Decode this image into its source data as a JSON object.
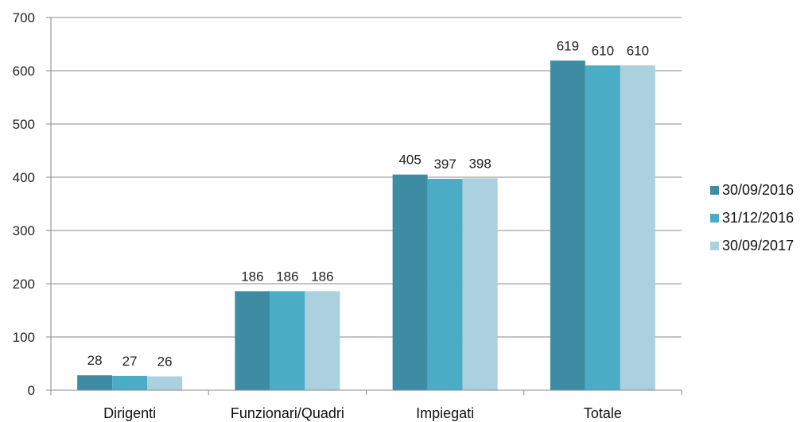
{
  "chart_data": {
    "type": "bar",
    "categories": [
      "Dirigenti",
      "Funzionari/Quadri",
      "Impiegati",
      "Totale"
    ],
    "series": [
      {
        "name": "30/09/2016",
        "values": [
          28,
          186,
          405,
          619
        ],
        "color": "#3d8ca4"
      },
      {
        "name": "31/12/2016",
        "values": [
          27,
          186,
          397,
          610
        ],
        "color": "#4bacc6"
      },
      {
        "name": "30/09/2017",
        "values": [
          26,
          186,
          398,
          610
        ],
        "color": "#abd0de"
      }
    ],
    "data_labels": [
      [
        "28",
        "186",
        "405",
        "619"
      ],
      [
        "27",
        "186",
        "397",
        "610"
      ],
      [
        "26",
        "186",
        "398",
        "610"
      ]
    ],
    "ylim": [
      0,
      700
    ],
    "yticks": [
      0,
      100,
      200,
      300,
      400,
      500,
      600,
      700
    ],
    "grid": true,
    "legend_position": "right"
  }
}
